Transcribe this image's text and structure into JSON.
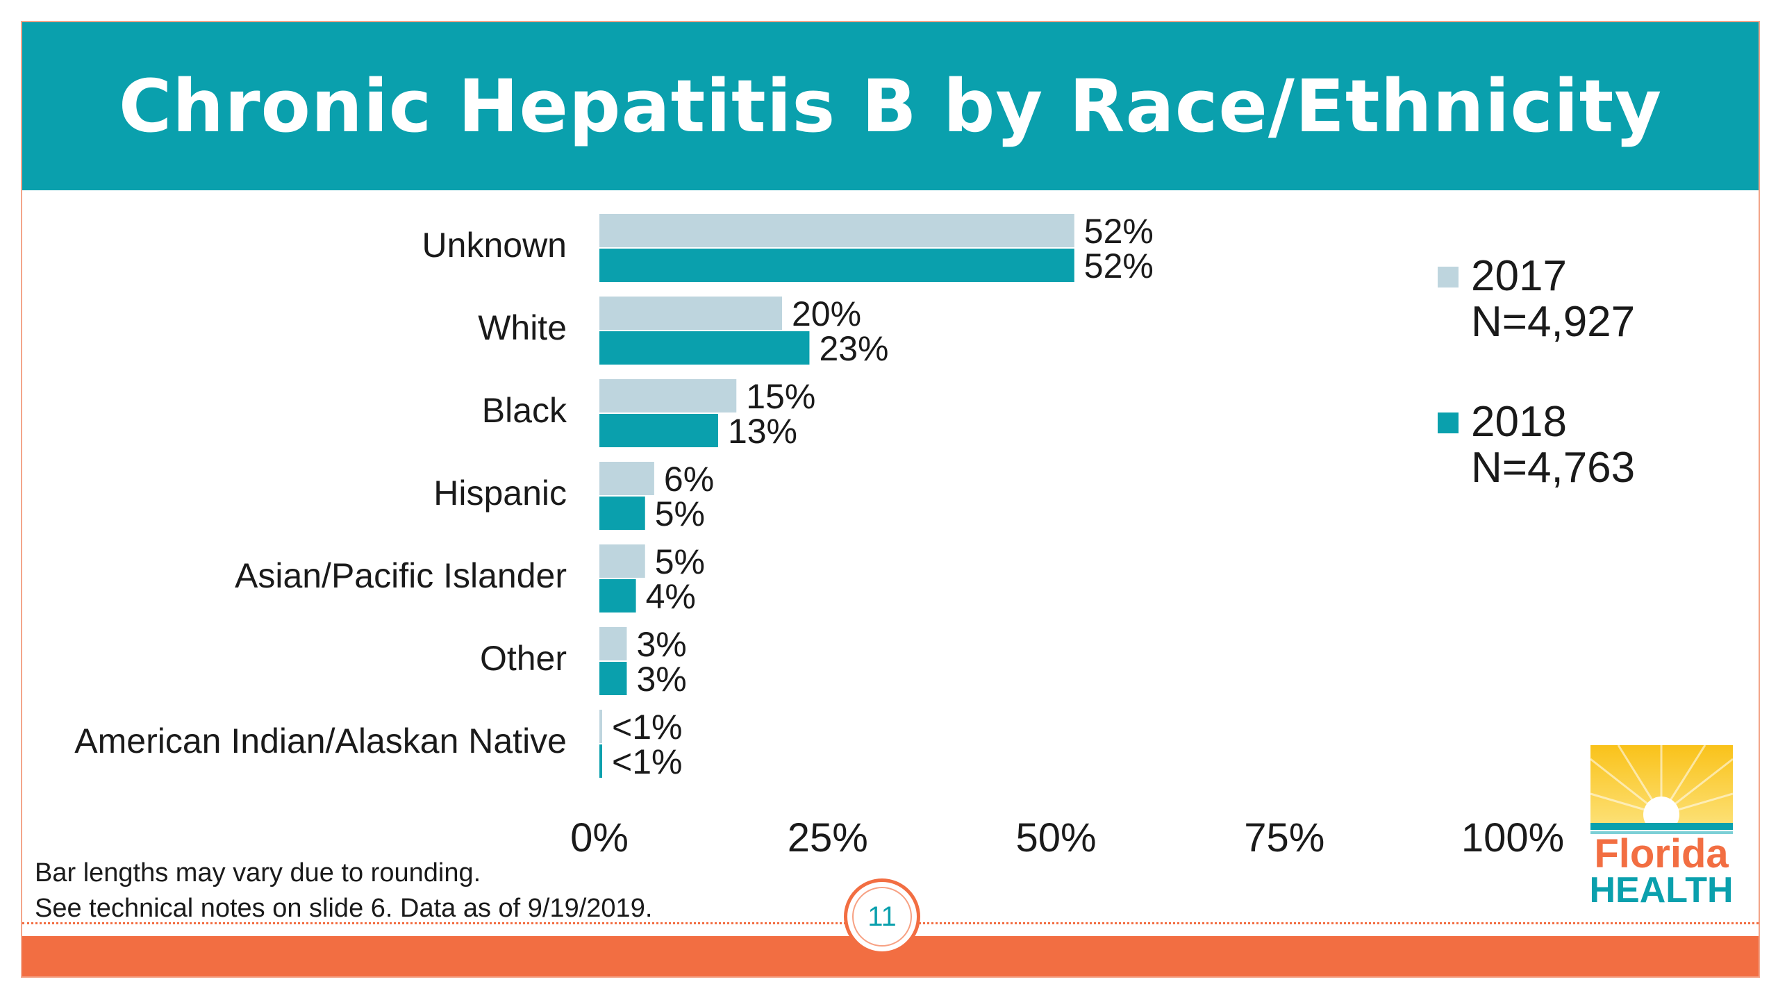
{
  "slide": {
    "title": "Chronic Hepatitis B by Race/Ethnicity",
    "footnote_line1": "Bar lengths may vary due to rounding.",
    "footnote_line2": "See technical notes on slide 6. Data as of 9/19/2019.",
    "page_number": "11",
    "logo_word1": "Florida",
    "logo_word2": "HEALTH"
  },
  "colors": {
    "title_bar": "#0aa0ad",
    "accent_orange": "#f26e42",
    "series_2017": "#bed5de",
    "series_2018": "#0aa0ad"
  },
  "chart_data": {
    "type": "bar",
    "orientation": "horizontal",
    "categories": [
      "Unknown",
      "White",
      "Black",
      "Hispanic",
      "Asian/Pacific Islander",
      "Other",
      "American Indian/Alaskan Native"
    ],
    "series": [
      {
        "name": "2017",
        "legend_note": "N=4,927",
        "values": [
          52,
          20,
          15,
          6,
          5,
          3,
          0.3
        ],
        "labels": [
          "52%",
          "20%",
          "15%",
          "6%",
          "5%",
          "3%",
          "<1%"
        ]
      },
      {
        "name": "2018",
        "legend_note": "N=4,763",
        "values": [
          52,
          23,
          13,
          5,
          4,
          3,
          0.3
        ],
        "labels": [
          "52%",
          "23%",
          "13%",
          "5%",
          "4%",
          "3%",
          "<1%"
        ]
      }
    ],
    "xlim": [
      0,
      100
    ],
    "xticks": [
      0,
      25,
      50,
      75,
      100
    ],
    "xtick_labels": [
      "0%",
      "25%",
      "50%",
      "75%",
      "100%"
    ],
    "grid": false,
    "legend_position": "right"
  }
}
